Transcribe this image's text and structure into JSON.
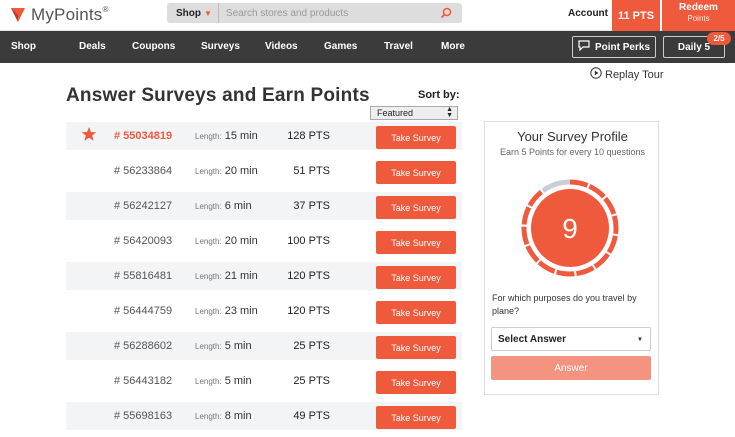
{
  "header": {
    "logo_text": "MyPoints",
    "logo_mark": "®",
    "search": {
      "category": "Shop",
      "placeholder": "Search stores and products"
    },
    "account_label": "Account",
    "points_balance": "11 PTS",
    "redeem_label": "Redeem",
    "redeem_sub": "Points"
  },
  "nav": {
    "items": [
      "Shop",
      "Deals",
      "Coupons",
      "Surveys",
      "Videos",
      "Games",
      "Travel",
      "More"
    ],
    "point_perks": "Point Perks",
    "daily": "Daily 5",
    "daily_badge": "2/5"
  },
  "main": {
    "replay_tour": "Replay Tour",
    "title": "Answer Surveys and Earn Points",
    "sort_by_label": "Sort by:",
    "sort_selected": "Featured",
    "length_label": "Length:",
    "take_label": "Take Survey",
    "surveys": [
      {
        "id": "# 55034819",
        "length": "15 min",
        "points": "128 PTS",
        "featured": true
      },
      {
        "id": "# 56233864",
        "length": "20 min",
        "points": "51 PTS",
        "featured": false
      },
      {
        "id": "# 56242127",
        "length": "6 min",
        "points": "37 PTS",
        "featured": false
      },
      {
        "id": "# 56420093",
        "length": "20 min",
        "points": "100 PTS",
        "featured": false
      },
      {
        "id": "# 55816481",
        "length": "21 min",
        "points": "120 PTS",
        "featured": false
      },
      {
        "id": "# 56444759",
        "length": "23 min",
        "points": "120 PTS",
        "featured": false
      },
      {
        "id": "# 56288602",
        "length": "5 min",
        "points": "25 PTS",
        "featured": false
      },
      {
        "id": "# 56443182",
        "length": "5 min",
        "points": "25 PTS",
        "featured": false
      },
      {
        "id": "# 55698163",
        "length": "8 min",
        "points": "49 PTS",
        "featured": false
      }
    ]
  },
  "profile": {
    "title": "Your Survey Profile",
    "subtitle": "Earn 5 Points for every 10 questions",
    "count": "9",
    "progress": 0.9,
    "question": "For which purposes do you travel by plane?",
    "select_placeholder": "Select Answer",
    "answer_button": "Answer"
  },
  "colors": {
    "accent": "#f05a3c",
    "nav_bg": "#3b3b3b",
    "button_light": "#f4937f",
    "gauge_track": "#c9ced6"
  }
}
